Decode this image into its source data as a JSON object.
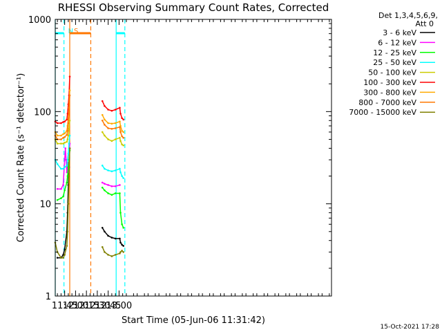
{
  "chart_data": {
    "type": "line",
    "title": "RHESSI Observing Summary Count Rates, Corrected",
    "xlabel": "Start Time (05-Jun-06 11:31:42)",
    "ylabel": "Corrected Count Rate (s⁻¹ detector⁻¹)",
    "yscale": "log",
    "ylim": [
      1,
      1000
    ],
    "xlim_minutes": [
      692,
      1073
    ],
    "x_tick_labels": [
      "11:45",
      "12:00",
      "12:15",
      "12:30",
      "12:45",
      "13:00"
    ],
    "x_tick_minutes": [
      705,
      720,
      735,
      750,
      765,
      780
    ],
    "y_tick_labels": [
      "1",
      "10",
      "100",
      "1000"
    ],
    "y_tick_values": [
      1,
      10,
      100,
      1000
    ],
    "legend_header": [
      "Det 1,3,4,5,6,9,",
      "Att 0"
    ],
    "series": [
      {
        "name": "3 - 6 keV",
        "color": "#000000",
        "segments": [
          {
            "x": [
              695,
              700,
              703,
              705,
              708,
              709,
              710,
              711,
              712
            ],
            "y": [
              2.6,
              2.6,
              2.8,
              3.2,
              5,
              8,
              16,
              25,
              40
            ]
          },
          {
            "x": [
              757,
              760,
              765,
              770,
              775,
              781,
              782,
              784,
              786
            ],
            "y": [
              5.5,
              5,
              4.5,
              4.3,
              4.2,
              4.2,
              3.8,
              3.6,
              3.5
            ]
          }
        ]
      },
      {
        "name": "6 - 12 keV",
        "color": "#ff00ff",
        "segments": [
          {
            "x": [
              695,
              700,
              703,
              705,
              706,
              707,
              708,
              709,
              710,
              711,
              712
            ],
            "y": [
              14.5,
              14.5,
              16,
              30,
              40,
              30,
              22,
              28,
              22,
              30,
              45
            ]
          },
          {
            "x": [
              757,
              760,
              765,
              770,
              775,
              781
            ],
            "y": [
              17,
              16.5,
              16,
              15.5,
              15.5,
              16
            ]
          }
        ]
      },
      {
        "name": "12 - 25 keV",
        "color": "#00ff00",
        "segments": [
          {
            "x": [
              695,
              700,
              703,
              705,
              708,
              709,
              710,
              711,
              712
            ],
            "y": [
              11,
              11.5,
              12,
              14,
              17,
              20,
              25,
              30,
              38
            ]
          },
          {
            "x": [
              757,
              760,
              765,
              770,
              775,
              781,
              782,
              784,
              786
            ],
            "y": [
              15,
              14,
              13,
              12.5,
              13,
              13,
              8,
              6,
              5.5
            ]
          }
        ]
      },
      {
        "name": "25 - 50 keV",
        "color": "#00ffff",
        "segments": [
          {
            "x": [
              692,
              695,
              700,
              703,
              705,
              708,
              709,
              710,
              711,
              712
            ],
            "y": [
              30,
              27,
              24,
              24,
              25,
              26,
              30,
              35,
              45,
              55
            ]
          },
          {
            "x": [
              757,
              760,
              765,
              770,
              775,
              781,
              782,
              784,
              786
            ],
            "y": [
              26,
              24,
              23,
              22.5,
              23,
              24,
              22,
              20,
              19
            ]
          }
        ]
      },
      {
        "name": "50 - 100 keV",
        "color": "#cccc00",
        "segments": [
          {
            "x": [
              692,
              695,
              700,
              703,
              705,
              708,
              709,
              710,
              711,
              712
            ],
            "y": [
              50,
              45,
              45,
              45,
              46,
              47,
              50,
              55,
              65,
              80
            ]
          },
          {
            "x": [
              757,
              760,
              765,
              770,
              775,
              781,
              782,
              784,
              786
            ],
            "y": [
              60,
              55,
              50,
              48,
              50,
              52,
              48,
              44,
              43
            ]
          }
        ]
      },
      {
        "name": "100 - 300 keV",
        "color": "#ff0000",
        "segments": [
          {
            "x": [
              692,
              695,
              700,
              703,
              705,
              708,
              709,
              710,
              711,
              712
            ],
            "y": [
              78,
              75,
              75,
              77,
              78,
              82,
              95,
              120,
              150,
              240
            ]
          },
          {
            "x": [
              757,
              760,
              765,
              770,
              775,
              781,
              782,
              784,
              786
            ],
            "y": [
              130,
              115,
              105,
              102,
              105,
              110,
              95,
              85,
              82
            ]
          }
        ]
      },
      {
        "name": "300 - 800 keV",
        "color": "#ffaa00",
        "segments": [
          {
            "x": [
              692,
              695,
              700,
              703,
              705,
              708,
              709,
              710,
              711,
              712
            ],
            "y": [
              60,
              55,
              55,
              57,
              58,
              62,
              70,
              85,
              110,
              170
            ]
          },
          {
            "x": [
              757,
              760,
              765,
              770,
              775,
              781,
              782,
              784,
              786
            ],
            "y": [
              92,
              82,
              75,
              74,
              75,
              78,
              70,
              62,
              60
            ]
          }
        ]
      },
      {
        "name": "800 - 7000 keV",
        "color": "#ff7700",
        "segments": [
          {
            "x": [
              692,
              695,
              700,
              703,
              705,
              708,
              709,
              710,
              711,
              712
            ],
            "y": [
              55,
              50,
              50,
              52,
              53,
              56,
              62,
              75,
              95,
              150
            ]
          },
          {
            "x": [
              757,
              760,
              765,
              770,
              775,
              781,
              782,
              784,
              786
            ],
            "y": [
              80,
              72,
              66,
              65,
              66,
              68,
              60,
              54,
              52
            ]
          }
        ]
      },
      {
        "name": "7000 - 15000 keV",
        "color": "#808000",
        "segments": [
          {
            "x": [
              692,
              695,
              700,
              703,
              705,
              708,
              709,
              710,
              711,
              712
            ],
            "y": [
              3.8,
              3,
              2.6,
              2.6,
              2.8,
              3.5,
              5,
              10,
              20,
              40
            ]
          },
          {
            "x": [
              757,
              760,
              765,
              770,
              775,
              781,
              782,
              784,
              786
            ],
            "y": [
              3.4,
              3,
              2.8,
              2.7,
              2.8,
              2.9,
              3,
              3.1,
              3
            ]
          }
        ]
      }
    ],
    "annotations": [
      {
        "text": "N",
        "x": 704,
        "color": "#00ffff",
        "style": "dashed-vline",
        "bar": null
      },
      {
        "text": "S",
        "x": 712,
        "color": "#ff7700",
        "style": "solid-vline",
        "bar": [
          712,
          741
        ]
      },
      {
        "text": "",
        "x": 741,
        "color": "#ff7700",
        "style": "dashed-vline",
        "bar": null
      },
      {
        "text": "",
        "x": 692,
        "color": "#00ffff",
        "style": "solid-vline",
        "bar": [
          692,
          704
        ]
      },
      {
        "text": "",
        "x": 776,
        "color": "#00ffff",
        "style": "solid-vline",
        "bar": [
          776,
          788
        ]
      },
      {
        "text": "",
        "x": 788,
        "color": "#00ffff",
        "style": "dashed-vline",
        "bar": null
      }
    ],
    "grid": false,
    "legend_position": "right"
  },
  "footer": {
    "timestamp": "15-Oct-2021 17:28"
  }
}
